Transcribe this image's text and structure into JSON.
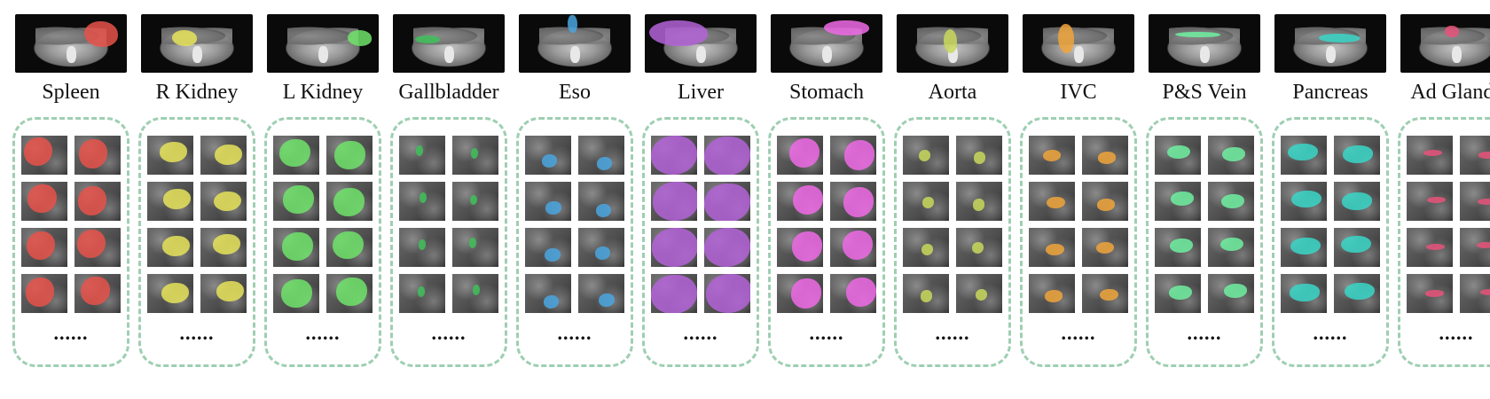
{
  "organs": [
    {
      "label": "Spleen",
      "color": "#e8524a"
    },
    {
      "label": "R Kidney",
      "color": "#e6e35a"
    },
    {
      "label": "L Kidney",
      "color": "#6fe36a"
    },
    {
      "label": "Gallbladder",
      "color": "#3fbf5a"
    },
    {
      "label": "Eso",
      "color": "#4aa6e0"
    },
    {
      "label": "Liver",
      "color": "#b463d8"
    },
    {
      "label": "Stomach",
      "color": "#f06ae6"
    },
    {
      "label": "Aorta",
      "color": "#c8d85a"
    },
    {
      "label": "IVC",
      "color": "#f0a43a"
    },
    {
      "label": "P&S Vein",
      "color": "#6ef0a0"
    },
    {
      "label": "Pancreas",
      "color": "#3ad6c8"
    },
    {
      "label": "Ad Glands",
      "color": "#e8527a"
    }
  ],
  "ellipsis": "......"
}
